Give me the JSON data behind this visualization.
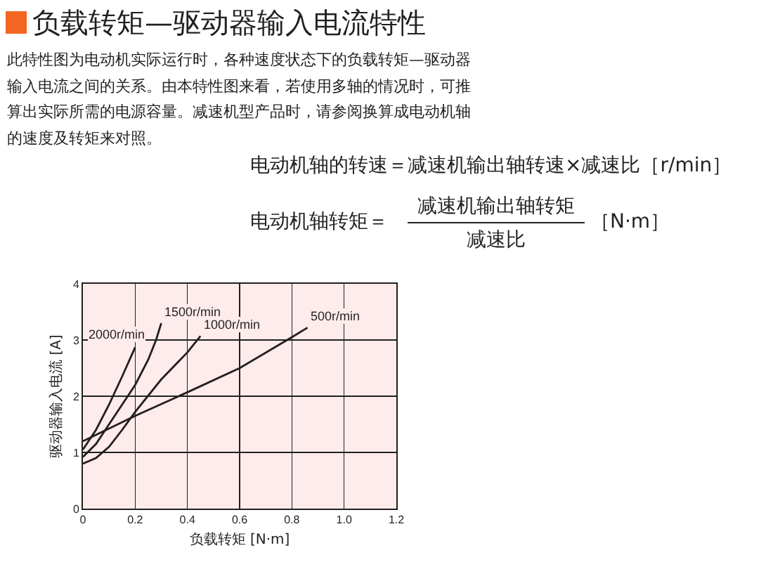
{
  "chart_data": {
    "type": "line",
    "title": "负载转矩—驱动器输入电流特性",
    "subtitle": "此特性图为电动机实际运行时，各种速度状态下的负载转矩—驱动器输入电流之间的关系。由本特性图来看，若使用多轴的情况时，可推算出实际所需的电源容量。减速机型产品时，请参阅换算成电动机轴的速度及转矩来对照。",
    "annotations": [
      "电动机轴的转速＝减速机输出轴转速×减速比［r/min］",
      "电动机轴转矩＝",
      "减速机输出轴转矩",
      "减速比",
      "［N·m］"
    ],
    "xlabel": "负载转矩 [N·m]",
    "ylabel": "驱动器输入电流 [A]",
    "series": [
      {
        "name": "2000r/min",
        "color": "#231f20",
        "x": [
          0,
          0.05,
          0.1,
          0.15,
          0.2
        ],
        "values": [
          1.05,
          1.4,
          1.85,
          2.35,
          2.87
        ]
      },
      {
        "name": "1500r/min",
        "color": "#231f20",
        "x": [
          0,
          0.05,
          0.1,
          0.15,
          0.2,
          0.25,
          0.28,
          0.3
        ],
        "values": [
          0.92,
          1.15,
          1.5,
          1.85,
          2.2,
          2.65,
          3.0,
          3.3
        ]
      },
      {
        "name": "1000r/min",
        "color": "#231f20",
        "x": [
          0,
          0.05,
          0.1,
          0.15,
          0.2,
          0.3,
          0.4,
          0.45
        ],
        "values": [
          0.8,
          0.9,
          1.1,
          1.4,
          1.72,
          2.3,
          2.78,
          3.07
        ]
      },
      {
        "name": "500r/min",
        "color": "#231f20",
        "x": [
          0,
          0.2,
          0.4,
          0.6,
          0.8,
          0.86
        ],
        "values": [
          1.2,
          1.65,
          2.07,
          2.5,
          3.05,
          3.22
        ]
      }
    ],
    "xlim": [
      0,
      1.2
    ],
    "xticks": [
      0,
      0.2,
      0.4,
      0.6,
      0.8,
      {
        "value": 1,
        "label": "1.0"
      },
      1.2
    ],
    "ylim": [
      0,
      4
    ],
    "yticks": [
      0,
      1,
      2,
      3,
      4
    ],
    "grid": true,
    "line_style": "solid"
  }
}
